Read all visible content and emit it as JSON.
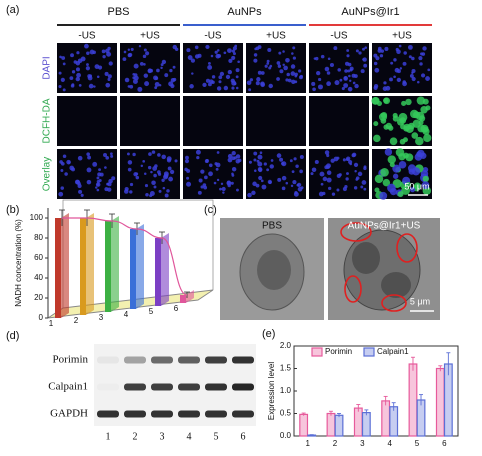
{
  "panel_a": {
    "label": "(a)",
    "groups": [
      {
        "name": "PBS",
        "color": "#222222"
      },
      {
        "name": "AuNPs",
        "color": "#3a5fcd"
      },
      {
        "name": "AuNPs@Ir1",
        "color": "#e23a3a"
      }
    ],
    "conditions": [
      "-US",
      "+US",
      "-US",
      "+US",
      "-US",
      "+US"
    ],
    "rows": [
      {
        "name": "DAPI",
        "color": "#5a4fcf"
      },
      {
        "name": "DCFH-DA",
        "color": "#2fa84f"
      },
      {
        "name": "Overlay",
        "color": "#2fa84f"
      }
    ],
    "scale_bar": "50 μm"
  },
  "panel_c": {
    "label": "(c)",
    "images": [
      "PBS",
      "AuNPs@Ir1+US"
    ],
    "scale_bar": "5 μm"
  },
  "panel_d": {
    "label": "(d)",
    "rows": [
      "Porimin",
      "Calpain1",
      "GAPDH"
    ],
    "lanes": [
      "1",
      "2",
      "3",
      "4",
      "5",
      "6"
    ]
  },
  "chart_data": [
    {
      "type": "bar3d",
      "label": "(b)",
      "ylabel": "NADH concentration (%)",
      "categories": [
        "1",
        "2",
        "3",
        "4",
        "5",
        "6"
      ],
      "values": [
        100,
        97,
        91,
        80,
        68,
        8
      ],
      "errors": [
        8,
        8,
        7,
        6,
        6,
        3
      ],
      "colors": [
        "#c0392b",
        "#d99a1e",
        "#3cb043",
        "#3a6fd8",
        "#7b3fc4",
        "#e0569b"
      ],
      "ylim": [
        0,
        110
      ],
      "yticks": [
        0,
        20,
        40,
        60,
        80,
        100
      ]
    },
    {
      "type": "grouped_bar",
      "label": "(e)",
      "ylabel": "Expression level",
      "categories": [
        "1",
        "2",
        "3",
        "4",
        "5",
        "6"
      ],
      "series": [
        {
          "name": "Porimin",
          "color": "#e75a9b",
          "values": [
            0.48,
            0.5,
            0.62,
            0.78,
            1.6,
            1.5
          ],
          "errors": [
            0.03,
            0.05,
            0.08,
            0.1,
            0.15,
            0.06
          ]
        },
        {
          "name": "Calpain1",
          "color": "#5b6fd6",
          "values": [
            0.02,
            0.46,
            0.52,
            0.65,
            0.8,
            1.6
          ],
          "errors": [
            0.01,
            0.04,
            0.06,
            0.09,
            0.12,
            0.25
          ]
        }
      ],
      "ylim": [
        0,
        2.0
      ],
      "yticks": [
        {
          "value": 0,
          "label": "0.0"
        },
        {
          "value": 0.5,
          "label": "0.5"
        },
        {
          "value": 1.0,
          "label": "1.0"
        },
        {
          "value": 1.5,
          "label": "1.5"
        },
        {
          "value": 2.0,
          "label": "2.0"
        }
      ],
      "legend": "top"
    }
  ]
}
